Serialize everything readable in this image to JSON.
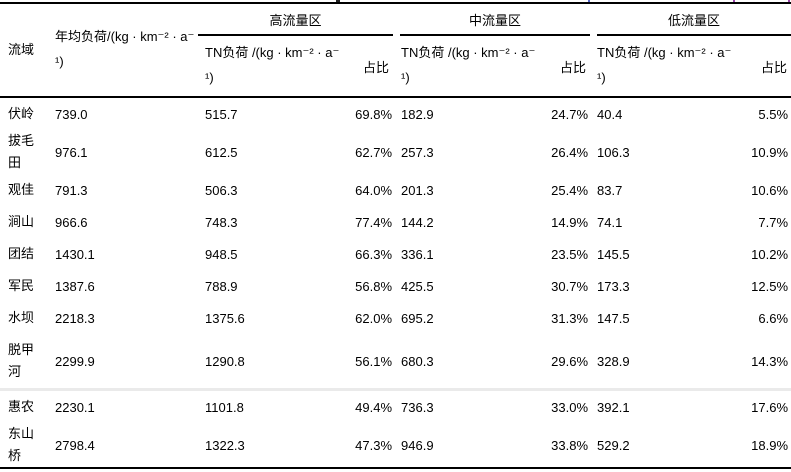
{
  "colors": {
    "text": "#000000",
    "border": "#000000",
    "light_separator": "#eaeaea",
    "background": "#ffffff"
  },
  "table": {
    "headers": {
      "watershed": "流域",
      "annual_line1": "年均负荷/(kg · km⁻² · a⁻",
      "annual_line2": "¹)",
      "tn_line1": "TN负荷 /(kg · km⁻² · a⁻",
      "tn_line2": "¹)",
      "ratio": "占比"
    },
    "groups": [
      {
        "label": "高流量区"
      },
      {
        "label": "中流量区"
      },
      {
        "label": "低流量区"
      }
    ],
    "rows": [
      {
        "name": "伏岭",
        "annual": "739.0",
        "high_tn": "515.7",
        "high_ratio": "69.8%",
        "mid_tn": "182.9",
        "mid_ratio": "24.7%",
        "low_tn": "40.4",
        "low_ratio": "5.5%"
      },
      {
        "name": "拔毛田",
        "annual": "976.1",
        "high_tn": "612.5",
        "high_ratio": "62.7%",
        "mid_tn": "257.3",
        "mid_ratio": "26.4%",
        "low_tn": "106.3",
        "low_ratio": "10.9%"
      },
      {
        "name": "观佳",
        "annual": "791.3",
        "high_tn": "506.3",
        "high_ratio": "64.0%",
        "mid_tn": "201.3",
        "mid_ratio": "25.4%",
        "low_tn": "83.7",
        "low_ratio": "10.6%"
      },
      {
        "name": "涧山",
        "annual": "966.6",
        "high_tn": "748.3",
        "high_ratio": "77.4%",
        "mid_tn": "144.2",
        "mid_ratio": "14.9%",
        "low_tn": "74.1",
        "low_ratio": "7.7%"
      },
      {
        "name": "团结",
        "annual": "1430.1",
        "high_tn": "948.5",
        "high_ratio": "66.3%",
        "mid_tn": "336.1",
        "mid_ratio": "23.5%",
        "low_tn": "145.5",
        "low_ratio": "10.2%"
      },
      {
        "name": "军民",
        "annual": "1387.6",
        "high_tn": "788.9",
        "high_ratio": "56.8%",
        "mid_tn": "425.5",
        "mid_ratio": "30.7%",
        "low_tn": "173.3",
        "low_ratio": "12.5%"
      },
      {
        "name": "水坝",
        "annual": "2218.3",
        "high_tn": "1375.6",
        "high_ratio": "62.0%",
        "mid_tn": "695.2",
        "mid_ratio": "31.3%",
        "low_tn": "147.5",
        "low_ratio": "6.6%"
      },
      {
        "name": "脱甲河",
        "annual": "2299.9",
        "high_tn": "1290.8",
        "high_ratio": "56.1%",
        "mid_tn": "680.3",
        "mid_ratio": "29.6%",
        "low_tn": "328.9",
        "low_ratio": "14.3%",
        "tall": true
      },
      {
        "name": "惠农",
        "annual": "2230.1",
        "high_tn": "1101.8",
        "high_ratio": "49.4%",
        "mid_tn": "736.3",
        "mid_ratio": "33.0%",
        "low_tn": "392.1",
        "low_ratio": "17.6%",
        "separator_above": true
      },
      {
        "name": "东山桥",
        "annual": "2798.4",
        "high_tn": "1322.3",
        "high_ratio": "47.3%",
        "mid_tn": "946.9",
        "mid_ratio": "33.8%",
        "low_tn": "529.2",
        "low_ratio": "18.9%"
      }
    ]
  }
}
